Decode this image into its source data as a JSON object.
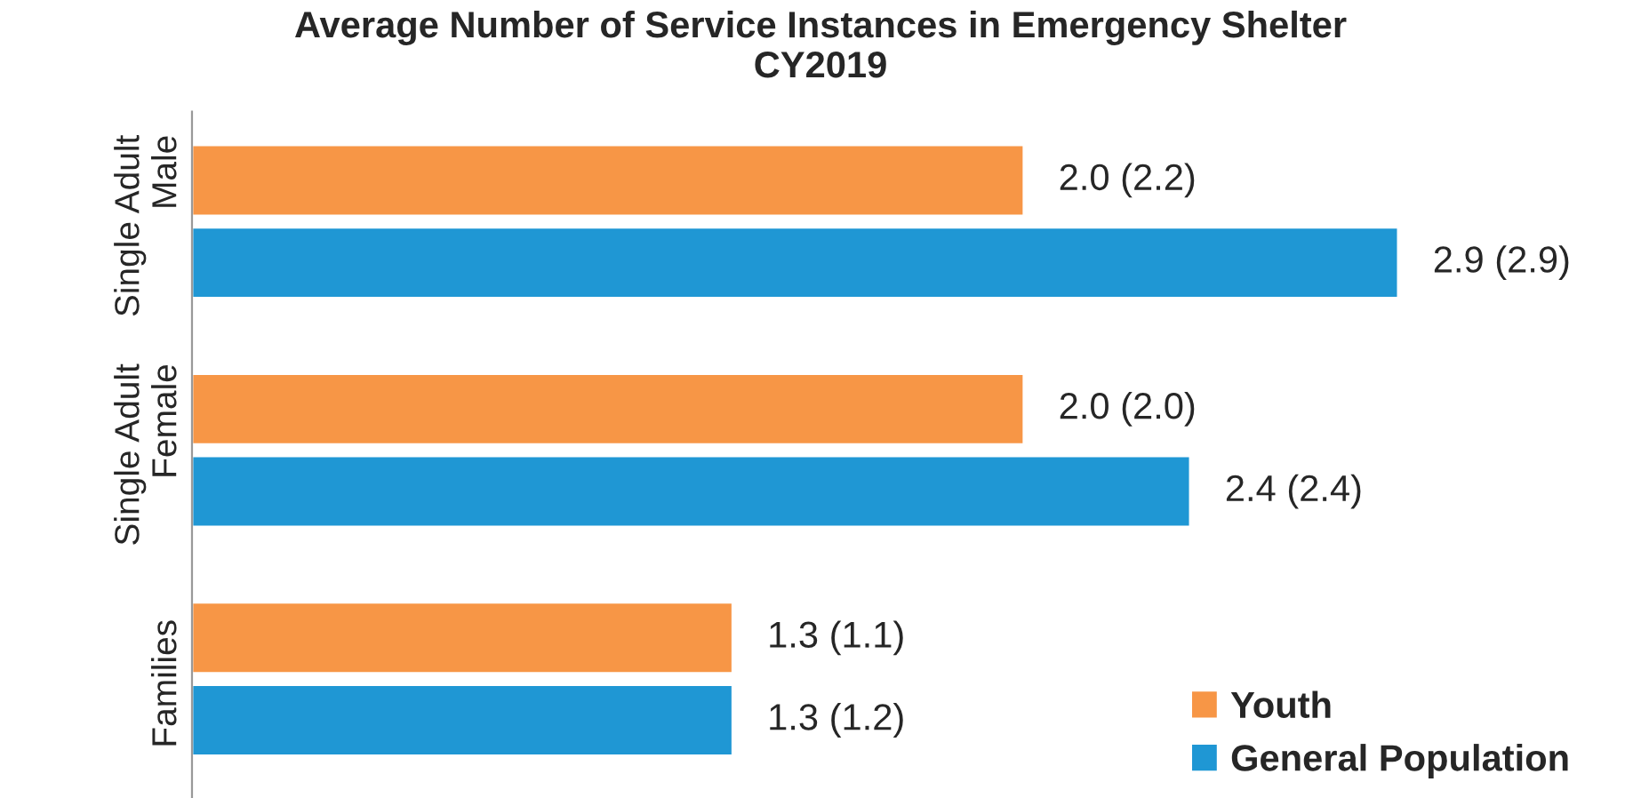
{
  "chart_data": {
    "type": "bar",
    "orientation": "horizontal",
    "title": "Average Number of Service Instances in Emergency Shelter",
    "subtitle": "CY2019",
    "categories": [
      "Single Adult\nMale",
      "Single Adult\nFemale",
      "Families"
    ],
    "series": [
      {
        "name": "Youth",
        "color": "#f79646",
        "values": [
          2.0,
          2.0,
          1.3
        ],
        "value_labels": [
          "2.0 (2.2)",
          "2.0 (2.0)",
          "1.3 (1.1)"
        ]
      },
      {
        "name": "General Population",
        "color": "#1f97d4",
        "values": [
          2.9,
          2.4,
          1.3
        ],
        "value_labels": [
          "2.9 (2.9)",
          "2.4 (2.4)",
          "1.3 (1.2)"
        ]
      }
    ],
    "legend": "bottom right",
    "grid": false,
    "tick_labels": "y"
  }
}
